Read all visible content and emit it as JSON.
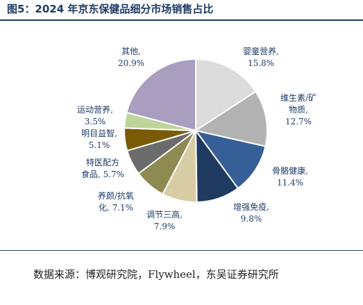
{
  "figure": {
    "title": "图5：2024 年京东保健品细分市场销售占比",
    "source": "数据来源：博观研究院，Flywheel，东吴证券研究所"
  },
  "chart_data": {
    "type": "pie",
    "start": "12 o'clock",
    "direction": "clockwise",
    "slices": [
      {
        "name": "婴童营养",
        "value": 15.8,
        "label_lines": [
          "婴童营养,",
          "15.8%"
        ],
        "color": "#dcdcdc"
      },
      {
        "name": "维生素/矿物质",
        "value": 12.7,
        "label_lines": [
          "维生素/矿",
          "物质,",
          "12.7%"
        ],
        "color": "#b2b2b2"
      },
      {
        "name": "骨骼健康",
        "value": 11.4,
        "label_lines": [
          "骨骼健康,",
          "11.4%"
        ],
        "color": "#355f96"
      },
      {
        "name": "增强免疫",
        "value": 9.8,
        "label_lines": [
          "增强免疫,",
          "9.8%"
        ],
        "color": "#1e3a60"
      },
      {
        "name": "调节三高",
        "value": 7.9,
        "label_lines": [
          "调节三高,",
          "7.9%"
        ],
        "color": "#d8cca4"
      },
      {
        "name": "养颜/抗氧化",
        "value": 7.1,
        "label_lines": [
          "养颜/抗氧",
          "化, 7.1%"
        ],
        "color": "#8f8a52"
      },
      {
        "name": "特医配方食品",
        "value": 5.7,
        "label_lines": [
          "特医配方",
          "食品, 5.7%"
        ],
        "color": "#6b6b6b"
      },
      {
        "name": "明目益智",
        "value": 5.1,
        "label_lines": [
          "明目益智,",
          "5.1%"
        ],
        "color": "#7a5a06"
      },
      {
        "name": "运动营养",
        "value": 3.5,
        "label_lines": [
          "运动营养,",
          "3.5%"
        ],
        "color": "#bdd59b"
      },
      {
        "name": "其他",
        "value": 20.9,
        "label_lines": [
          "其他,",
          "20.9%"
        ],
        "color": "#a99dc0"
      }
    ]
  }
}
